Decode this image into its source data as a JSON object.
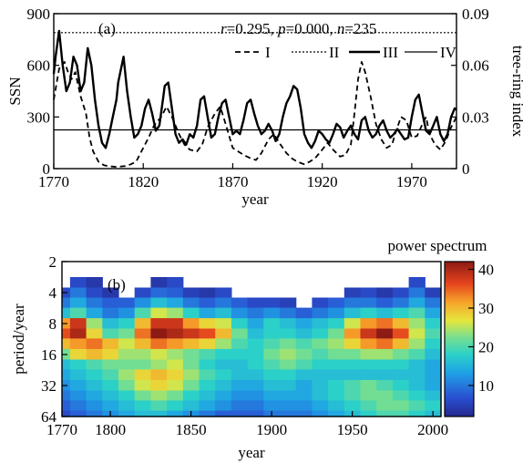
{
  "chart_data": [
    {
      "type": "line",
      "panel_label": "(a)",
      "stats": {
        "r_label": "r",
        "r": "0.295",
        "p_label": "p",
        "p": "0.000",
        "n_label": "n",
        "n": "235"
      },
      "xlabel": "year",
      "ylabel_left": "SSN",
      "ylabel_right": "tree-ring index",
      "xlim": [
        1770,
        1995
      ],
      "ylim_left": [
        0,
        900
      ],
      "ylim_right": [
        0,
        0.09
      ],
      "xticks": [
        1770,
        1820,
        1870,
        1920,
        1970
      ],
      "yticks_left": [
        0,
        300,
        600,
        900
      ],
      "yticks_right": [
        "0",
        "0.03",
        "0.06",
        "0.09"
      ],
      "legend": [
        "I",
        "II",
        "III",
        "IV"
      ],
      "series": [
        {
          "name": "I",
          "axis": "left",
          "style": "dashed",
          "x": [
            1770,
            1773,
            1776,
            1778,
            1780,
            1782,
            1785,
            1788,
            1790,
            1792,
            1795,
            1798,
            1800,
            1805,
            1810,
            1813,
            1816,
            1820,
            1823,
            1826,
            1830,
            1833,
            1836,
            1840,
            1843,
            1846,
            1850,
            1853,
            1856,
            1860,
            1863,
            1866,
            1870,
            1873,
            1876,
            1880,
            1883,
            1886,
            1890,
            1893,
            1896,
            1900,
            1903,
            1906,
            1910,
            1913,
            1916,
            1920,
            1923,
            1926,
            1930,
            1933,
            1936,
            1938,
            1940,
            1942,
            1944,
            1947,
            1950,
            1953,
            1956,
            1959,
            1961,
            1964,
            1967,
            1970,
            1973,
            1976,
            1978,
            1980,
            1983,
            1986,
            1989,
            1992,
            1995
          ],
          "values": [
            400,
            580,
            620,
            560,
            520,
            560,
            420,
            320,
            180,
            100,
            40,
            20,
            15,
            10,
            15,
            25,
            40,
            120,
            180,
            250,
            300,
            360,
            300,
            200,
            140,
            110,
            100,
            140,
            240,
            320,
            360,
            260,
            120,
            100,
            80,
            60,
            50,
            90,
            170,
            200,
            150,
            90,
            60,
            40,
            25,
            40,
            60,
            110,
            150,
            110,
            70,
            80,
            140,
            320,
            520,
            620,
            560,
            420,
            260,
            170,
            120,
            140,
            210,
            300,
            280,
            180,
            190,
            260,
            300,
            200,
            140,
            110,
            160,
            240,
            300
          ]
        },
        {
          "name": "II",
          "axis": "left",
          "style": "dotted",
          "x": [
            1770,
            1995
          ],
          "values": [
            790,
            790
          ]
        },
        {
          "name": "III",
          "axis": "right",
          "style": "thick-solid",
          "x": [
            1770,
            1771,
            1773,
            1775,
            1777,
            1779,
            1781,
            1783,
            1785,
            1787,
            1789,
            1791,
            1793,
            1795,
            1797,
            1799,
            1801,
            1803,
            1805,
            1806,
            1808,
            1809,
            1811,
            1813,
            1815,
            1817,
            1819,
            1821,
            1823,
            1825,
            1827,
            1829,
            1831,
            1832,
            1834,
            1836,
            1838,
            1840,
            1842,
            1844,
            1846,
            1848,
            1850,
            1852,
            1854,
            1856,
            1858,
            1860,
            1862,
            1864,
            1866,
            1868,
            1870,
            1872,
            1874,
            1876,
            1878,
            1880,
            1882,
            1884,
            1886,
            1888,
            1890,
            1892,
            1894,
            1896,
            1898,
            1900,
            1902,
            1904,
            1906,
            1908,
            1910,
            1912,
            1914,
            1916,
            1918,
            1920,
            1922,
            1924,
            1926,
            1928,
            1930,
            1932,
            1934,
            1936,
            1938,
            1940,
            1942,
            1944,
            1946,
            1948,
            1950,
            1952,
            1954,
            1956,
            1958,
            1960,
            1962,
            1964,
            1966,
            1968,
            1970,
            1972,
            1974,
            1976,
            1978,
            1980,
            1982,
            1984,
            1986,
            1988,
            1990,
            1992,
            1994,
            1995
          ],
          "values": [
            0.055,
            0.065,
            0.08,
            0.06,
            0.045,
            0.05,
            0.065,
            0.06,
            0.045,
            0.05,
            0.07,
            0.06,
            0.04,
            0.025,
            0.015,
            0.012,
            0.02,
            0.03,
            0.04,
            0.05,
            0.06,
            0.065,
            0.045,
            0.03,
            0.018,
            0.02,
            0.025,
            0.035,
            0.04,
            0.032,
            0.022,
            0.025,
            0.04,
            0.048,
            0.05,
            0.035,
            0.02,
            0.015,
            0.017,
            0.014,
            0.02,
            0.018,
            0.025,
            0.04,
            0.042,
            0.03,
            0.018,
            0.02,
            0.03,
            0.038,
            0.04,
            0.03,
            0.02,
            0.022,
            0.02,
            0.028,
            0.038,
            0.04,
            0.032,
            0.025,
            0.02,
            0.022,
            0.026,
            0.022,
            0.016,
            0.02,
            0.03,
            0.038,
            0.042,
            0.048,
            0.046,
            0.035,
            0.02,
            0.015,
            0.012,
            0.016,
            0.022,
            0.02,
            0.017,
            0.015,
            0.02,
            0.026,
            0.024,
            0.018,
            0.022,
            0.025,
            0.02,
            0.017,
            0.028,
            0.03,
            0.022,
            0.018,
            0.02,
            0.025,
            0.028,
            0.022,
            0.018,
            0.02,
            0.023,
            0.02,
            0.017,
            0.018,
            0.03,
            0.04,
            0.043,
            0.032,
            0.022,
            0.02,
            0.025,
            0.03,
            0.02,
            0.016,
            0.02,
            0.03,
            0.035,
            0.034
          ]
        },
        {
          "name": "IV",
          "axis": "right",
          "style": "thin-solid",
          "x": [
            1770,
            1995
          ],
          "values": [
            0.0225,
            0.0225
          ]
        }
      ]
    },
    {
      "type": "heatmap",
      "panel_label": "(b)",
      "title": "power spectrum",
      "xlabel": "year",
      "ylabel": "period/year",
      "xlim": [
        1770,
        2005
      ],
      "ylim": [
        2,
        64
      ],
      "y_scale": "log2",
      "xticks": [
        1770,
        1800,
        1850,
        1900,
        1950,
        2000
      ],
      "yticks": [
        2,
        4,
        8,
        16,
        32,
        64
      ],
      "colorbar": {
        "range": [
          2,
          42
        ],
        "ticks": [
          10,
          20,
          30,
          40
        ]
      },
      "x": [
        1770,
        1780,
        1790,
        1800,
        1810,
        1820,
        1830,
        1840,
        1850,
        1860,
        1870,
        1880,
        1890,
        1900,
        1910,
        1920,
        1930,
        1940,
        1950,
        1960,
        1970,
        1980,
        1990,
        2000
      ],
      "y": [
        2.5,
        3.2,
        4,
        5,
        6.3,
        8,
        10,
        12.5,
        16,
        20,
        25,
        32,
        40,
        50,
        63
      ],
      "z": [
        [
          0,
          0,
          0,
          0,
          0,
          0,
          0,
          0,
          0,
          0,
          0,
          0,
          0,
          0,
          0,
          0,
          0,
          0,
          0,
          0,
          0,
          0,
          0,
          0
        ],
        [
          0,
          6,
          4,
          0,
          0,
          0,
          4,
          6,
          0,
          0,
          0,
          0,
          0,
          0,
          0,
          0,
          0,
          0,
          0,
          0,
          0,
          0,
          6,
          0
        ],
        [
          6,
          10,
          6,
          4,
          0,
          6,
          9,
          8,
          5,
          4,
          6,
          0,
          0,
          0,
          0,
          0,
          0,
          0,
          5,
          6,
          4,
          6,
          10,
          5
        ],
        [
          10,
          14,
          10,
          8,
          8,
          12,
          16,
          14,
          10,
          8,
          10,
          8,
          6,
          6,
          5,
          0,
          6,
          8,
          10,
          10,
          8,
          10,
          14,
          10
        ],
        [
          16,
          20,
          14,
          10,
          12,
          20,
          26,
          24,
          18,
          14,
          16,
          12,
          10,
          12,
          10,
          8,
          10,
          12,
          16,
          18,
          16,
          18,
          20,
          14
        ],
        [
          32,
          38,
          24,
          16,
          18,
          30,
          38,
          38,
          32,
          28,
          26,
          18,
          14,
          18,
          16,
          14,
          16,
          18,
          26,
          32,
          34,
          30,
          24,
          18
        ],
        [
          36,
          40,
          28,
          20,
          22,
          34,
          42,
          40,
          38,
          36,
          30,
          22,
          16,
          18,
          18,
          16,
          18,
          22,
          32,
          38,
          42,
          36,
          26,
          20
        ],
        [
          30,
          32,
          34,
          30,
          26,
          30,
          34,
          32,
          30,
          28,
          24,
          20,
          18,
          20,
          22,
          20,
          22,
          24,
          28,
          32,
          34,
          30,
          24,
          18
        ],
        [
          22,
          28,
          30,
          28,
          24,
          24,
          26,
          24,
          22,
          20,
          18,
          18,
          18,
          22,
          24,
          22,
          20,
          22,
          22,
          24,
          24,
          22,
          20,
          16
        ],
        [
          16,
          18,
          20,
          22,
          22,
          22,
          24,
          26,
          22,
          18,
          16,
          16,
          18,
          20,
          22,
          20,
          18,
          18,
          18,
          18,
          18,
          18,
          16,
          14
        ],
        [
          14,
          16,
          18,
          20,
          24,
          28,
          30,
          28,
          24,
          20,
          18,
          16,
          16,
          18,
          18,
          16,
          16,
          16,
          16,
          16,
          16,
          16,
          16,
          14
        ],
        [
          12,
          14,
          16,
          18,
          22,
          26,
          28,
          26,
          22,
          18,
          16,
          14,
          14,
          16,
          16,
          14,
          16,
          18,
          20,
          22,
          20,
          18,
          16,
          14
        ],
        [
          10,
          12,
          14,
          16,
          18,
          22,
          24,
          22,
          18,
          16,
          14,
          12,
          12,
          14,
          14,
          14,
          16,
          18,
          20,
          22,
          22,
          20,
          18,
          16
        ],
        [
          8,
          10,
          12,
          14,
          16,
          18,
          20,
          18,
          16,
          14,
          12,
          10,
          10,
          12,
          12,
          12,
          14,
          16,
          18,
          20,
          22,
          22,
          20,
          18
        ],
        [
          6,
          8,
          10,
          12,
          14,
          16,
          16,
          14,
          12,
          10,
          8,
          8,
          8,
          10,
          10,
          10,
          12,
          14,
          16,
          18,
          20,
          20,
          18,
          16
        ]
      ]
    }
  ]
}
